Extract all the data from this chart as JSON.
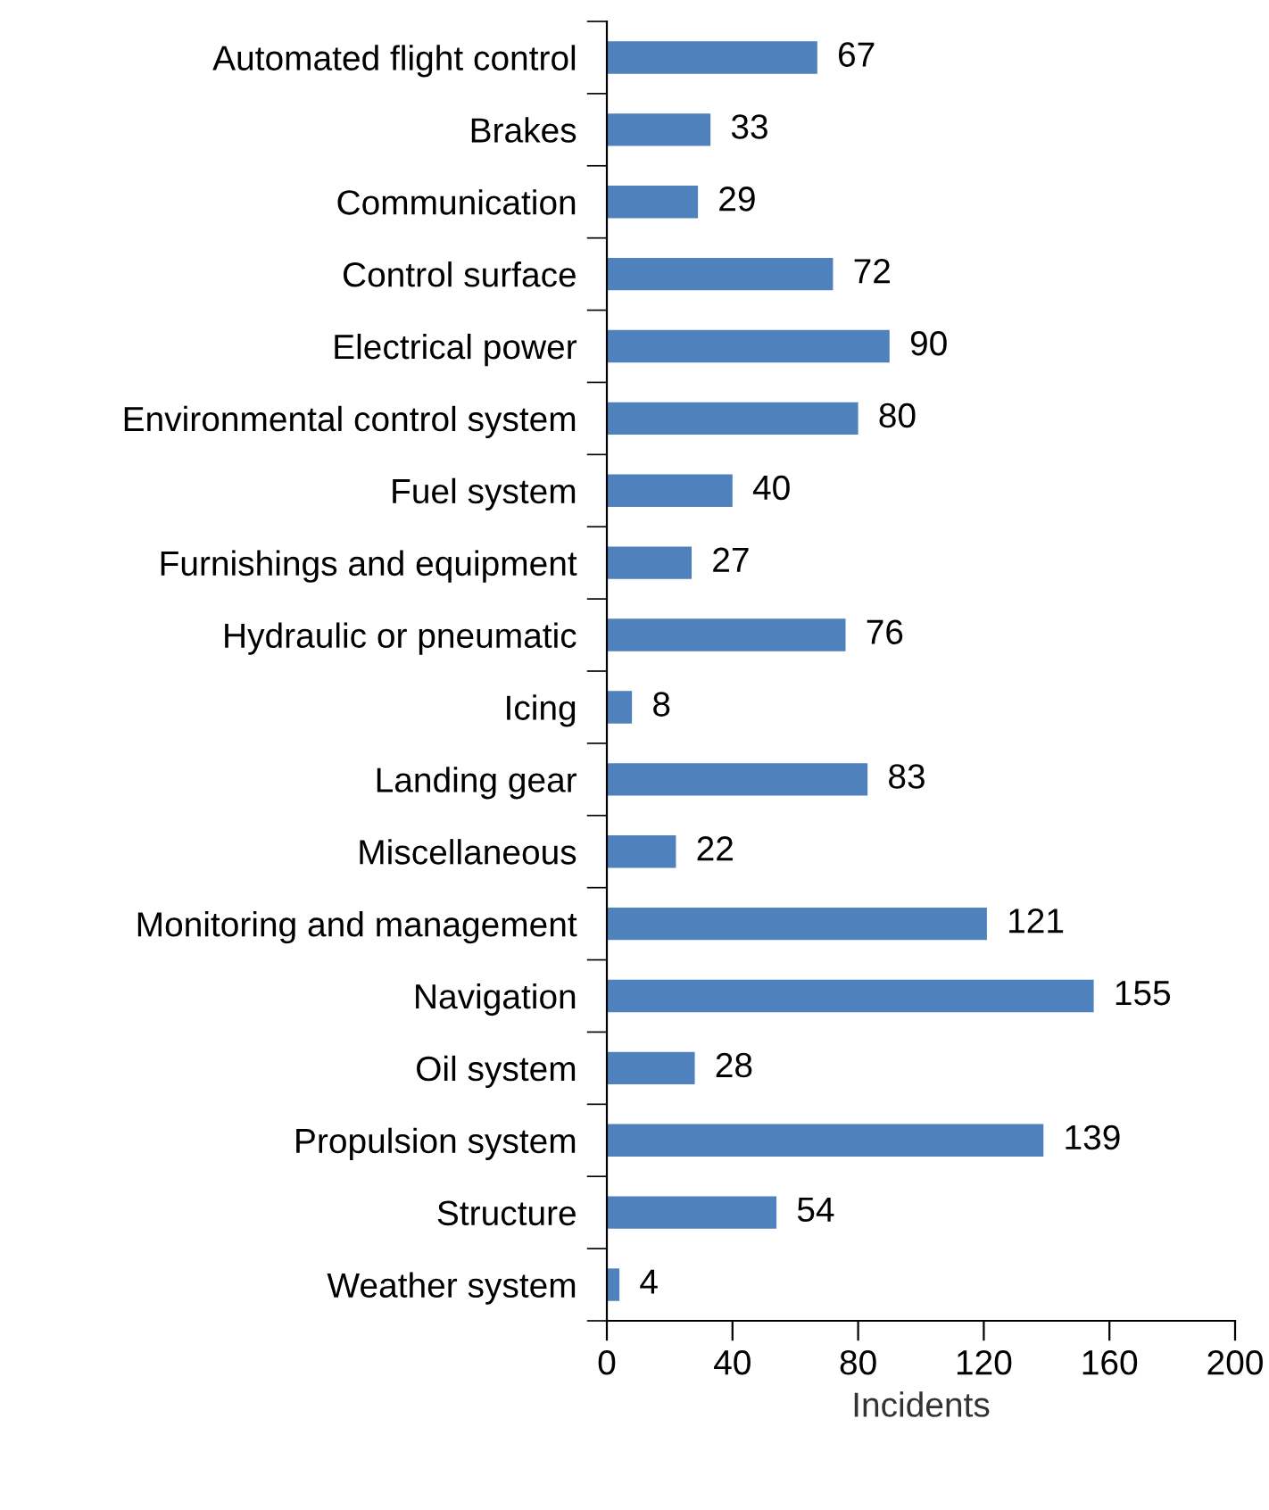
{
  "chart_data": {
    "type": "bar",
    "orientation": "horizontal",
    "xlabel": "Incidents",
    "categories": [
      "Automated flight control",
      "Brakes",
      "Communication",
      "Control surface",
      "Electrical power",
      "Environmental control system",
      "Fuel system",
      "Furnishings and equipment",
      "Hydraulic or pneumatic",
      "Icing",
      "Landing gear",
      "Miscellaneous",
      "Monitoring and management",
      "Navigation",
      "Oil system",
      "Propulsion system",
      "Structure",
      "Weather system"
    ],
    "values": [
      67,
      33,
      29,
      72,
      90,
      80,
      40,
      27,
      76,
      8,
      83,
      22,
      121,
      155,
      28,
      139,
      54,
      4
    ],
    "color": "#4f81bd",
    "data_labels": true,
    "xlim": [
      0,
      200
    ],
    "xticks": [
      0,
      40,
      80,
      120,
      160,
      200
    ],
    "grid": false
  }
}
